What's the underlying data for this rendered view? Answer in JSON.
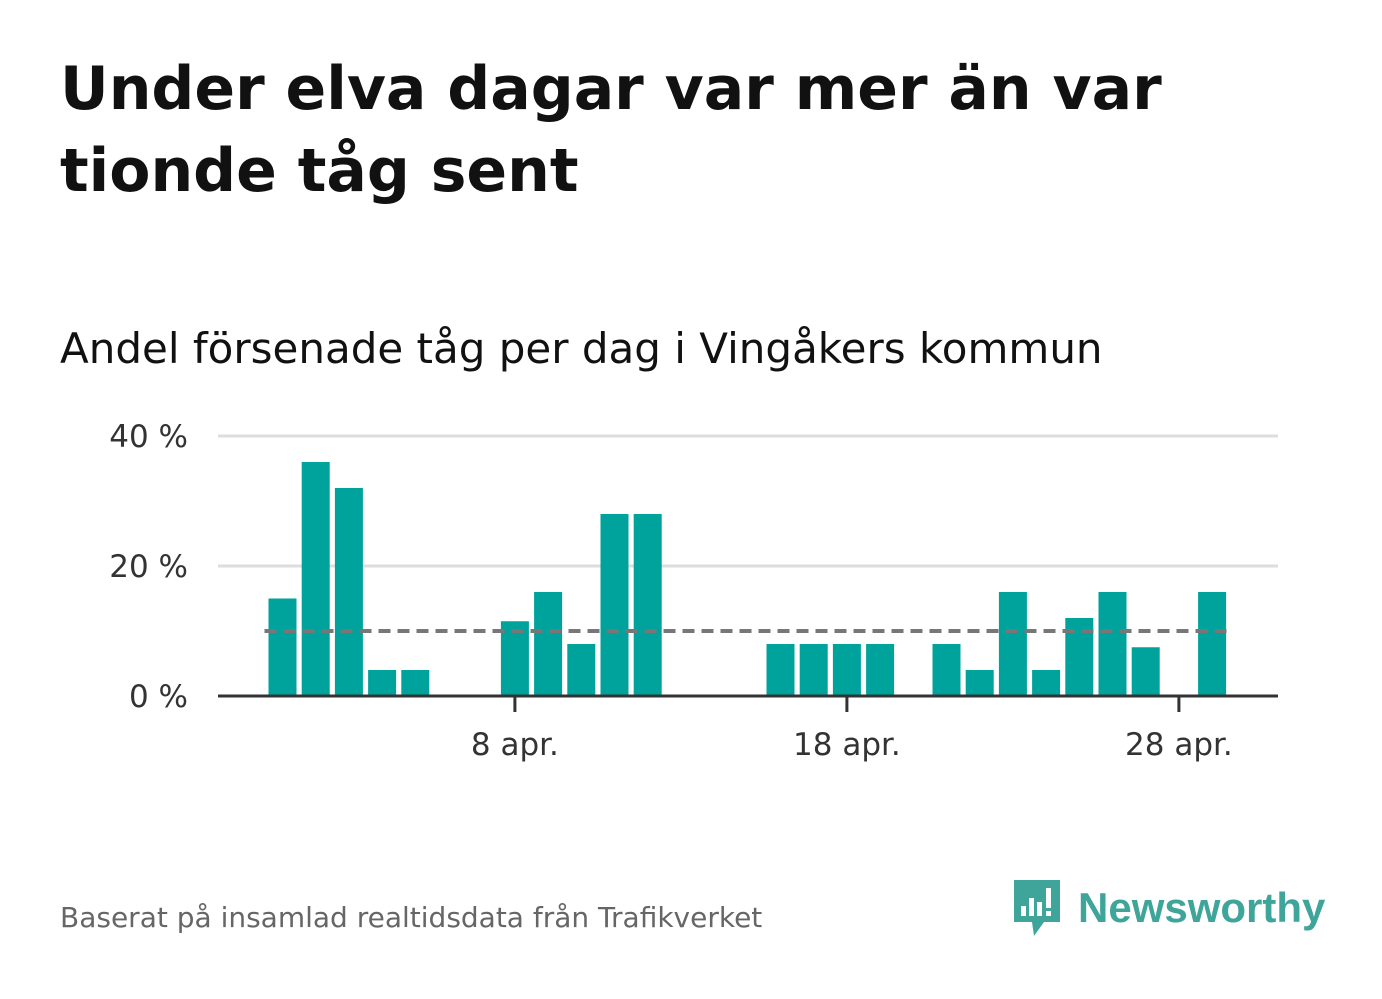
{
  "title": "Under elva dagar var mer än var tionde tåg sent",
  "subtitle": "Andel försenade tåg per dag i Vingåkers kommun",
  "source": "Baserat på insamlad realtidsdata från Trafikverket",
  "brand": {
    "name": "Newsworthy",
    "icon": "newsworthy-logo-icon",
    "color": "#3fa59b"
  },
  "chart_data": {
    "type": "bar",
    "x_start_day": 1,
    "x_month_label": "apr.",
    "x": [
      1,
      2,
      3,
      4,
      5,
      6,
      7,
      8,
      9,
      10,
      11,
      12,
      13,
      14,
      15,
      16,
      17,
      18,
      19,
      20,
      21,
      22,
      23,
      24,
      25,
      26,
      27,
      28,
      29,
      30
    ],
    "values": [
      15,
      36,
      32,
      4,
      4,
      0,
      0,
      11.5,
      16,
      8,
      28,
      28,
      0,
      0,
      0,
      8,
      8,
      8,
      8,
      0,
      8,
      4,
      16,
      4,
      12,
      16,
      7.5,
      0,
      16,
      0
    ],
    "x_ticks": [
      {
        "day": 8,
        "label": "8 apr."
      },
      {
        "day": 18,
        "label": "18 apr."
      },
      {
        "day": 28,
        "label": "28 apr."
      }
    ],
    "y_ticks": [
      {
        "value": 0,
        "label": "0 %"
      },
      {
        "value": 20,
        "label": "20 %"
      },
      {
        "value": 40,
        "label": "40 %"
      }
    ],
    "ylim": [
      0,
      40
    ],
    "reference_line": {
      "value": 10,
      "style": "dashed",
      "color": "#777777"
    },
    "bar_color": "#00a39b",
    "gridline_color": "#dddddd",
    "axis_color": "#333333",
    "grid": true
  }
}
